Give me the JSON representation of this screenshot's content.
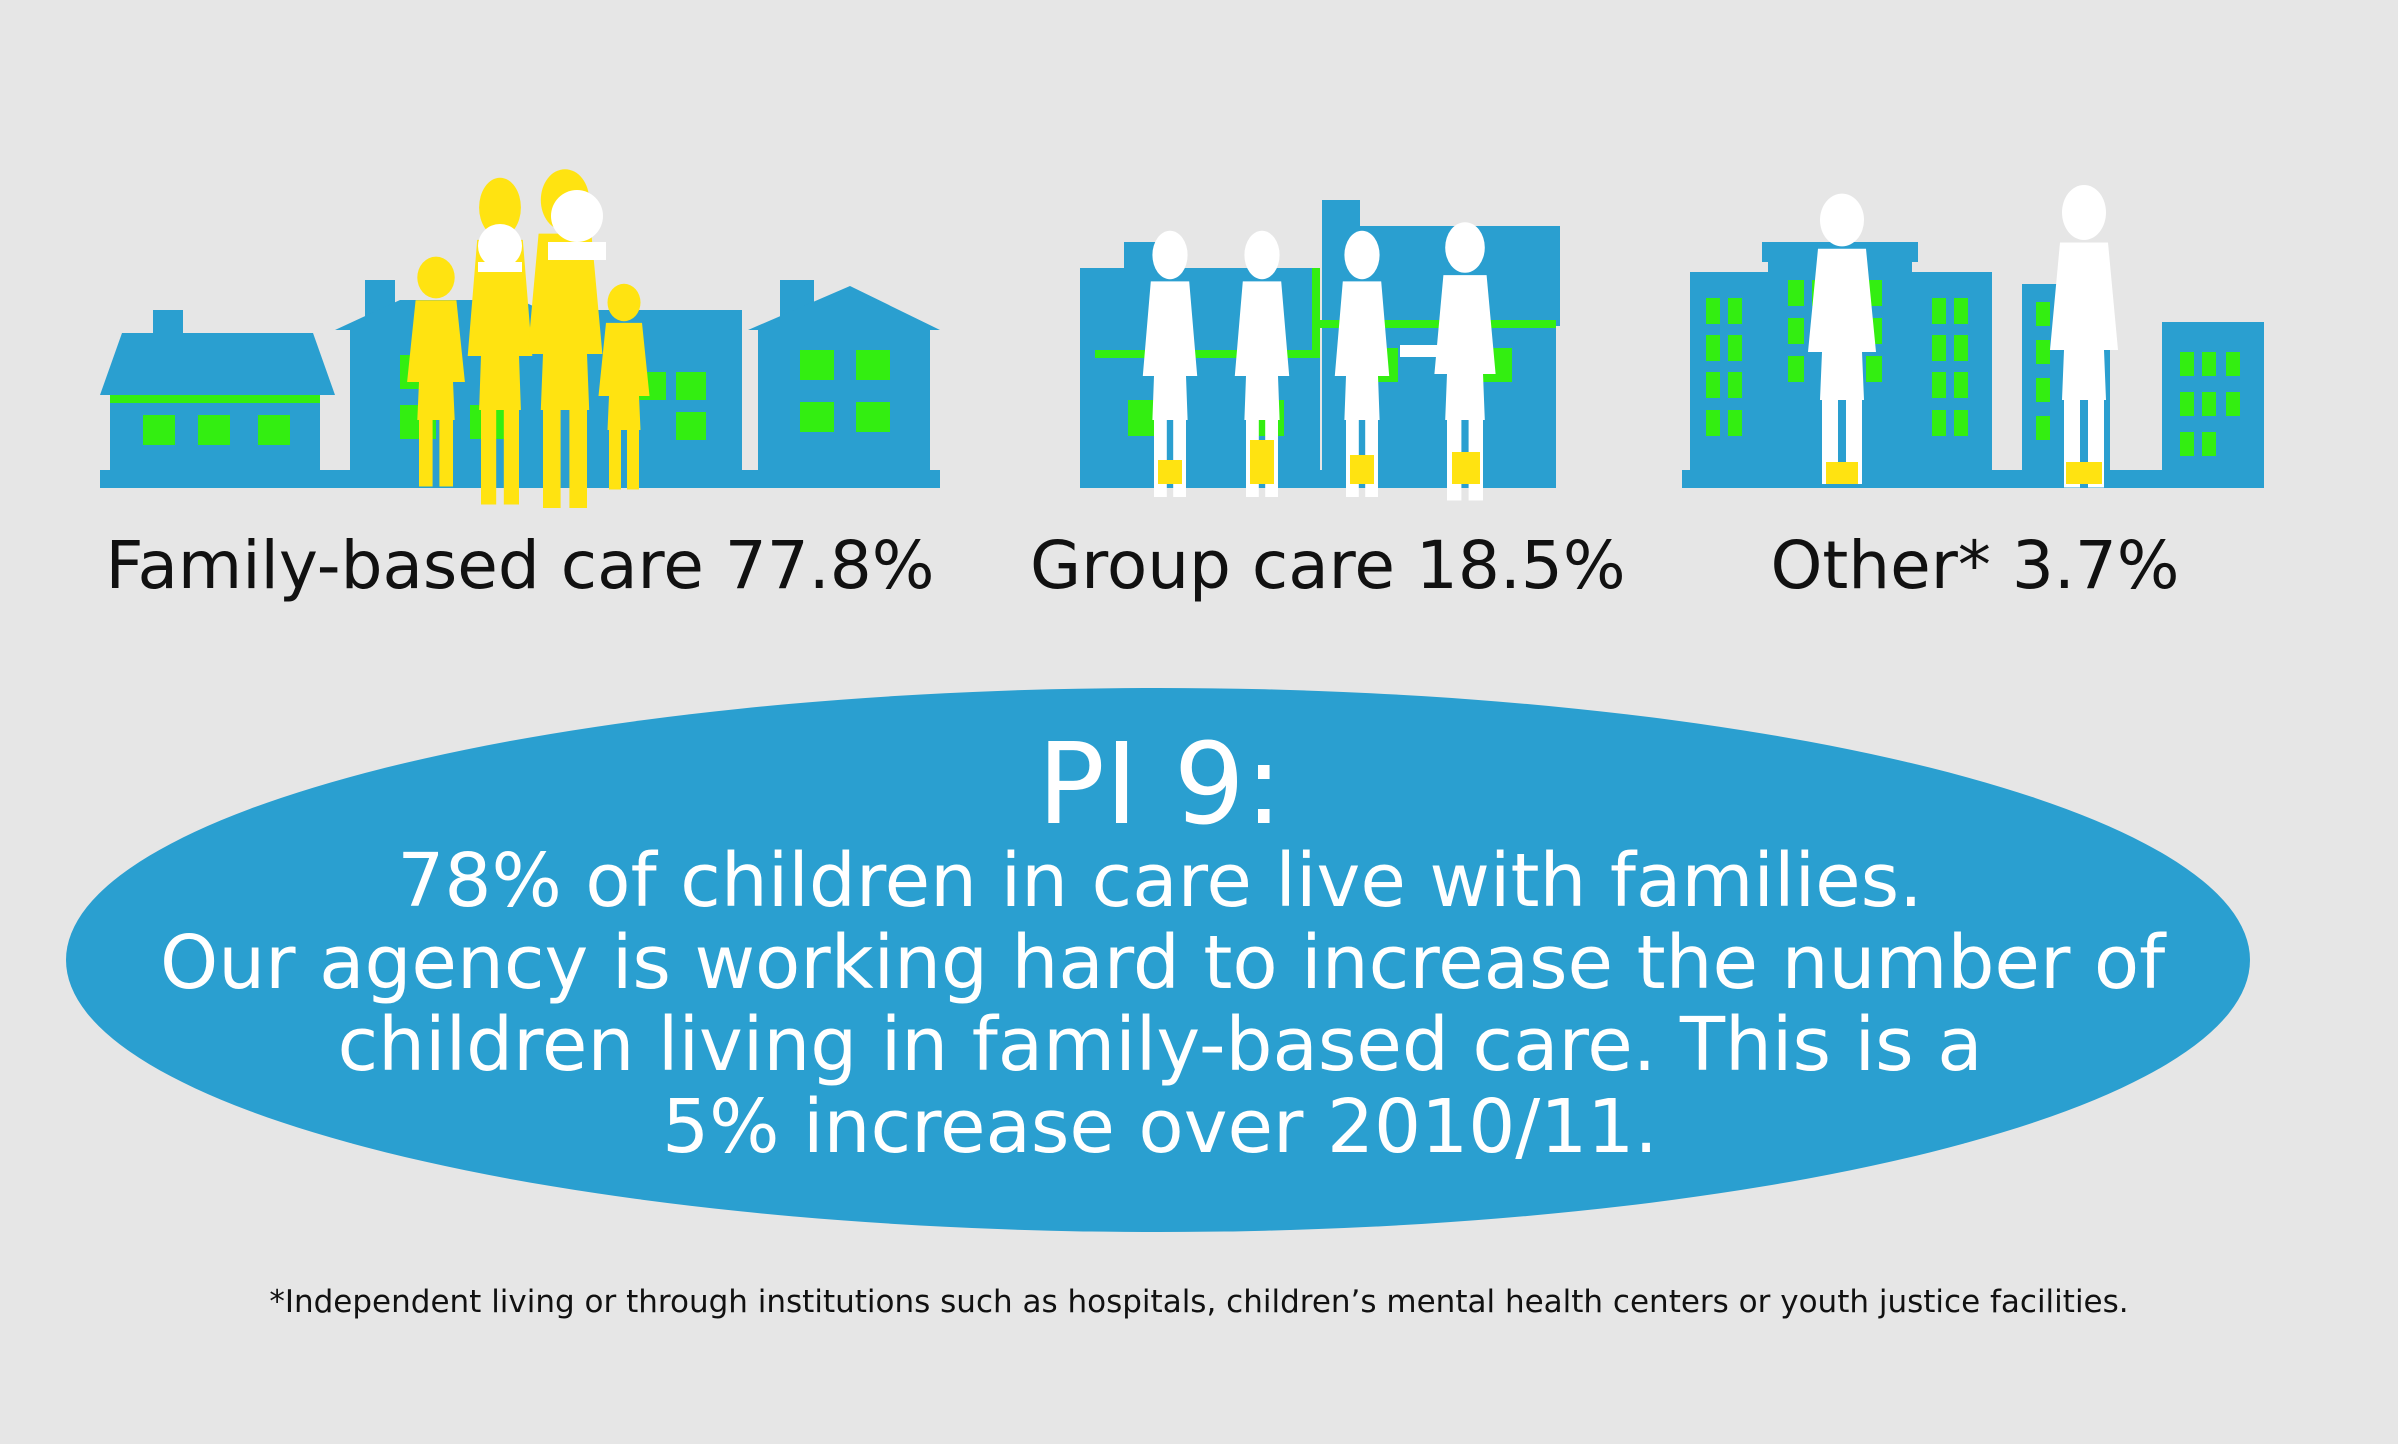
{
  "categories": [
    {
      "label": "Family-based care 77.8%"
    },
    {
      "label": "Group care 18.5%"
    },
    {
      "label": "Other* 3.7%"
    }
  ],
  "callout": {
    "title": "PI 9:",
    "lines": [
      "78% of children in care live with families.",
      "Our agency is working hard to increase the number of",
      "children living in family-based care. This is a",
      "5% increase over 2010/11."
    ]
  },
  "footnote": "*Independent living or through institutions such as hospitals, children’s mental health centers or youth justice facilities.",
  "colors": {
    "background": "#e6e6e6",
    "building": "#2a9fd0",
    "window": "#33ee11",
    "figure_yellow": "#ffe311",
    "figure_white": "#ffffff",
    "ellipse": "#2a9fd0"
  }
}
